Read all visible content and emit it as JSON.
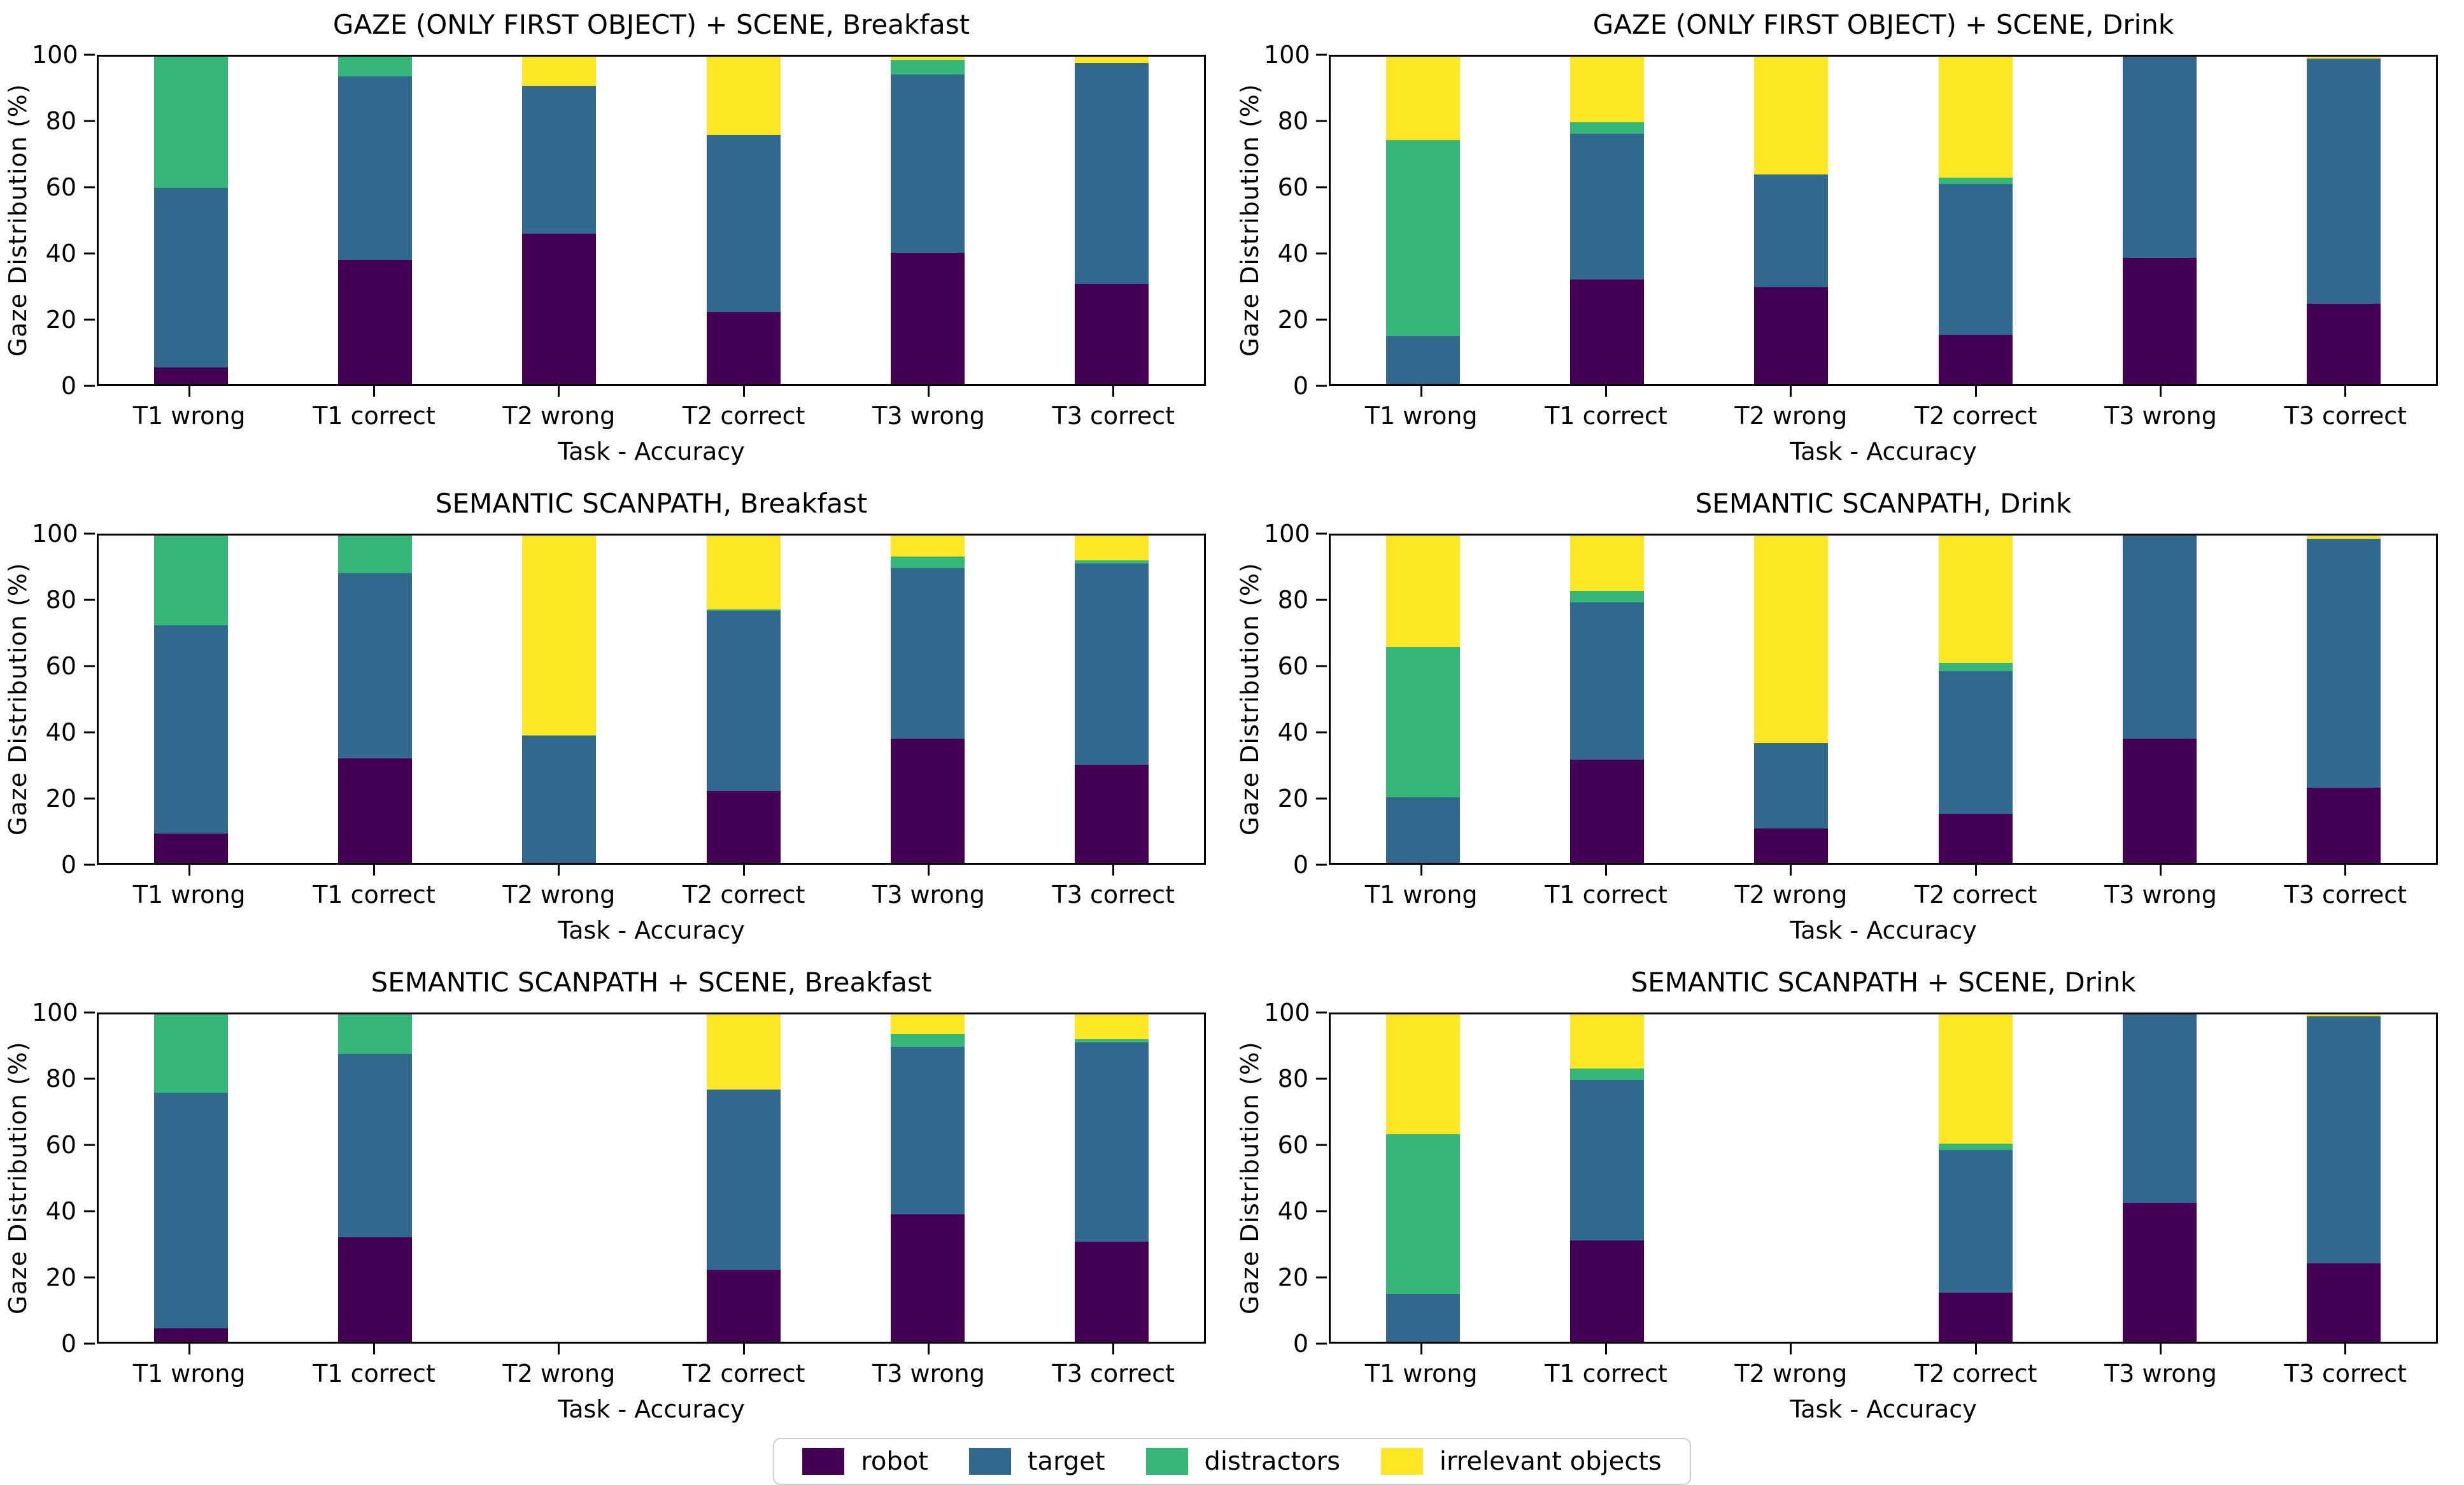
{
  "figure": {
    "ylabel": "Gaze Distribution (%)",
    "xlabel": "Task - Accuracy",
    "y_ticks": [
      0,
      20,
      40,
      60,
      80,
      100
    ],
    "ylim": [
      0,
      100
    ],
    "grid": "off",
    "background": "#ffffff"
  },
  "legend": {
    "position": "bottom-center",
    "items": [
      {
        "name": "robot",
        "label": "robot",
        "color": "#440154"
      },
      {
        "name": "target",
        "label": "target",
        "color": "#31688e"
      },
      {
        "name": "distractors",
        "label": "distractors",
        "color": "#35b779"
      },
      {
        "name": "irrelevant",
        "label": "irrelevant objects",
        "color": "#fde725"
      }
    ]
  },
  "chart_data": [
    {
      "type": "bar",
      "stacked": true,
      "title": "GAZE (ONLY FIRST OBJECT) + SCENE, Breakfast",
      "categories": [
        "T1 wrong",
        "T1 correct",
        "T2 wrong",
        "T2 correct",
        "T3 wrong",
        "T3 correct"
      ],
      "ylim": [
        0,
        100
      ],
      "series": [
        {
          "name": "robot",
          "values": [
            5,
            38,
            46,
            22,
            40,
            30.5
          ]
        },
        {
          "name": "target",
          "values": [
            55,
            56,
            45,
            54,
            54.5,
            67.5
          ]
        },
        {
          "name": "distractors",
          "values": [
            40,
            6,
            0,
            0,
            4.5,
            0
          ]
        },
        {
          "name": "irrelevant",
          "values": [
            0,
            0,
            9,
            24,
            1,
            2
          ]
        }
      ]
    },
    {
      "type": "bar",
      "stacked": true,
      "title": "GAZE (ONLY FIRST OBJECT) + SCENE, Drink",
      "categories": [
        "T1 wrong",
        "T1 correct",
        "T2 wrong",
        "T2 correct",
        "T3 wrong",
        "T3 correct"
      ],
      "ylim": [
        0,
        100
      ],
      "series": [
        {
          "name": "robot",
          "values": [
            0,
            32,
            29.5,
            15,
            38.5,
            24.5
          ]
        },
        {
          "name": "target",
          "values": [
            14.5,
            44.5,
            34.5,
            46,
            61.5,
            75
          ]
        },
        {
          "name": "distractors",
          "values": [
            60,
            3.5,
            0,
            2,
            0,
            0
          ]
        },
        {
          "name": "irrelevant",
          "values": [
            25.5,
            20,
            36,
            37,
            0,
            0.5
          ]
        }
      ]
    },
    {
      "type": "bar",
      "stacked": true,
      "title": "SEMANTIC SCANPATH, Breakfast",
      "categories": [
        "T1 wrong",
        "T1 correct",
        "T2 wrong",
        "T2 correct",
        "T3 wrong",
        "T3 correct"
      ],
      "ylim": [
        0,
        100
      ],
      "series": [
        {
          "name": "robot",
          "values": [
            9,
            32,
            0,
            22,
            38,
            30
          ]
        },
        {
          "name": "target",
          "values": [
            63.5,
            56.5,
            39,
            55,
            52,
            61.5
          ]
        },
        {
          "name": "distractors",
          "values": [
            27.5,
            11.5,
            0,
            0.5,
            3.5,
            1
          ]
        },
        {
          "name": "irrelevant",
          "values": [
            0,
            0,
            61,
            22.5,
            6.5,
            7.5
          ]
        }
      ]
    },
    {
      "type": "bar",
      "stacked": true,
      "title": "SEMANTIC SCANPATH, Drink",
      "categories": [
        "T1 wrong",
        "T1 correct",
        "T2 wrong",
        "T2 correct",
        "T3 wrong",
        "T3 correct"
      ],
      "ylim": [
        0,
        100
      ],
      "series": [
        {
          "name": "robot",
          "values": [
            0,
            31.5,
            10.5,
            15,
            38,
            23
          ]
        },
        {
          "name": "target",
          "values": [
            20,
            48,
            26,
            43.5,
            62,
            76
          ]
        },
        {
          "name": "distractors",
          "values": [
            46,
            3.5,
            0,
            2.5,
            0,
            0
          ]
        },
        {
          "name": "irrelevant",
          "values": [
            34,
            17,
            63.5,
            39,
            0,
            1
          ]
        }
      ]
    },
    {
      "type": "bar",
      "stacked": true,
      "title": "SEMANTIC SCANPATH + SCENE, Breakfast",
      "categories": [
        "T1 wrong",
        "T1 correct",
        "T2 wrong",
        "T2 correct",
        "T3 wrong",
        "T3 correct"
      ],
      "ylim": [
        0,
        100
      ],
      "series": [
        {
          "name": "robot",
          "values": [
            4,
            32,
            0,
            22,
            39,
            30.5
          ]
        },
        {
          "name": "target",
          "values": [
            72,
            56,
            0,
            55,
            51,
            61
          ]
        },
        {
          "name": "distractors",
          "values": [
            24,
            12,
            0,
            0,
            4,
            1
          ]
        },
        {
          "name": "irrelevant",
          "values": [
            0,
            0,
            0,
            23,
            6,
            7.5
          ]
        }
      ]
    },
    {
      "type": "bar",
      "stacked": true,
      "title": "SEMANTIC SCANPATH + SCENE, Drink",
      "categories": [
        "T1 wrong",
        "T1 correct",
        "T2 wrong",
        "T2 correct",
        "T3 wrong",
        "T3 correct"
      ],
      "ylim": [
        0,
        100
      ],
      "series": [
        {
          "name": "robot",
          "values": [
            0,
            31,
            0,
            15,
            42.5,
            24
          ]
        },
        {
          "name": "target",
          "values": [
            14.5,
            49,
            0,
            43.5,
            57.5,
            75.5
          ]
        },
        {
          "name": "distractors",
          "values": [
            49,
            3.5,
            0,
            2,
            0,
            0
          ]
        },
        {
          "name": "irrelevant",
          "values": [
            36.5,
            16.5,
            0,
            39.5,
            0,
            0.5
          ]
        }
      ]
    }
  ]
}
